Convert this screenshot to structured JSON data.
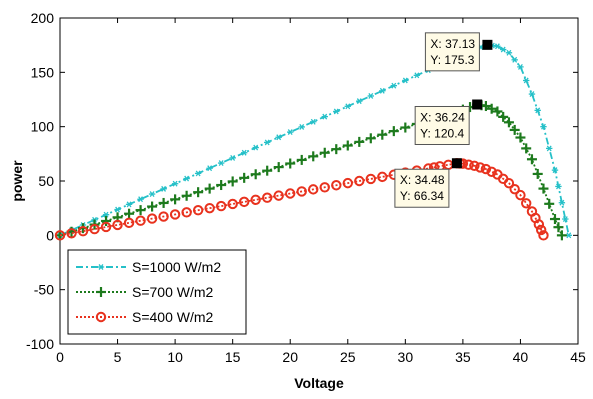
{
  "chart_data": {
    "type": "line",
    "xlabel": "Voltage",
    "ylabel": "power",
    "xlim": [
      0,
      45
    ],
    "ylim": [
      -100,
      200
    ],
    "xticks": [
      "0",
      "5",
      "10",
      "15",
      "20",
      "25",
      "30",
      "35",
      "40",
      "45"
    ],
    "yticks": [
      "200",
      "150",
      "100",
      "50",
      "0",
      "-50",
      "-100"
    ],
    "grid": false,
    "legend_position": "bottom-left",
    "series": [
      {
        "name": "S=1000 W/m2",
        "color": "#25c0c8",
        "marker": "asterisk",
        "line_style": "dash-dot",
        "x": [
          0,
          2,
          4,
          6,
          8,
          10,
          12,
          14,
          16,
          18,
          20,
          22,
          24,
          26,
          28,
          30,
          32,
          34,
          36,
          37.13,
          38,
          39,
          40,
          41,
          42,
          43,
          43.6,
          44.2
        ],
        "y": [
          0,
          9.5,
          19,
          28.5,
          38,
          47.5,
          57,
          66.5,
          76,
          85.5,
          95,
          104.5,
          114,
          123.5,
          133,
          142.5,
          152,
          161.5,
          171,
          175.3,
          174,
          168,
          155,
          130,
          100,
          60,
          30,
          0
        ]
      },
      {
        "name": "S=700 W/m2",
        "color": "#1d7a1d",
        "marker": "plus",
        "line_style": "dotted",
        "x": [
          0,
          2,
          4,
          6,
          8,
          10,
          12,
          14,
          16,
          18,
          20,
          22,
          24,
          26,
          28,
          30,
          32,
          34,
          35,
          36.24,
          37,
          38,
          39,
          40,
          41,
          42,
          43,
          43.6
        ],
        "y": [
          0,
          6.6,
          13.2,
          19.9,
          26.5,
          33.1,
          39.7,
          46.3,
          52.9,
          59.5,
          66.1,
          72.7,
          79.3,
          86,
          92.6,
          99.2,
          105.8,
          112.4,
          115.7,
          120.4,
          119,
          114,
          104,
          90,
          70,
          43,
          15,
          0
        ]
      },
      {
        "name": "S=400 W/m2",
        "color": "#e8321e",
        "marker": "circle",
        "line_style": "dotted",
        "x": [
          0,
          2,
          4,
          6,
          8,
          10,
          12,
          14,
          16,
          18,
          20,
          22,
          24,
          26,
          28,
          30,
          32,
          33,
          34.48,
          35,
          36,
          37,
          38,
          39,
          40,
          41,
          41.6,
          42
        ],
        "y": [
          0,
          3.8,
          7.7,
          11.5,
          15.4,
          19.2,
          23.1,
          26.9,
          30.8,
          34.6,
          38.5,
          42.3,
          46.1,
          50,
          53.8,
          57.7,
          61.5,
          63.5,
          66.34,
          66,
          64,
          61,
          56,
          48,
          37,
          22,
          10,
          0
        ]
      }
    ],
    "annotations": [
      {
        "x": 37.13,
        "y": 175.3,
        "label_x": "X: 37.13",
        "label_y": "Y: 175.3",
        "series": "S=1000 W/m2"
      },
      {
        "x": 36.24,
        "y": 120.4,
        "label_x": "X: 36.24",
        "label_y": "Y: 120.4",
        "series": "S=700 W/m2"
      },
      {
        "x": 34.48,
        "y": 66.34,
        "label_x": "X: 34.48",
        "label_y": "Y: 66.34",
        "series": "S=400 W/m2"
      }
    ]
  }
}
